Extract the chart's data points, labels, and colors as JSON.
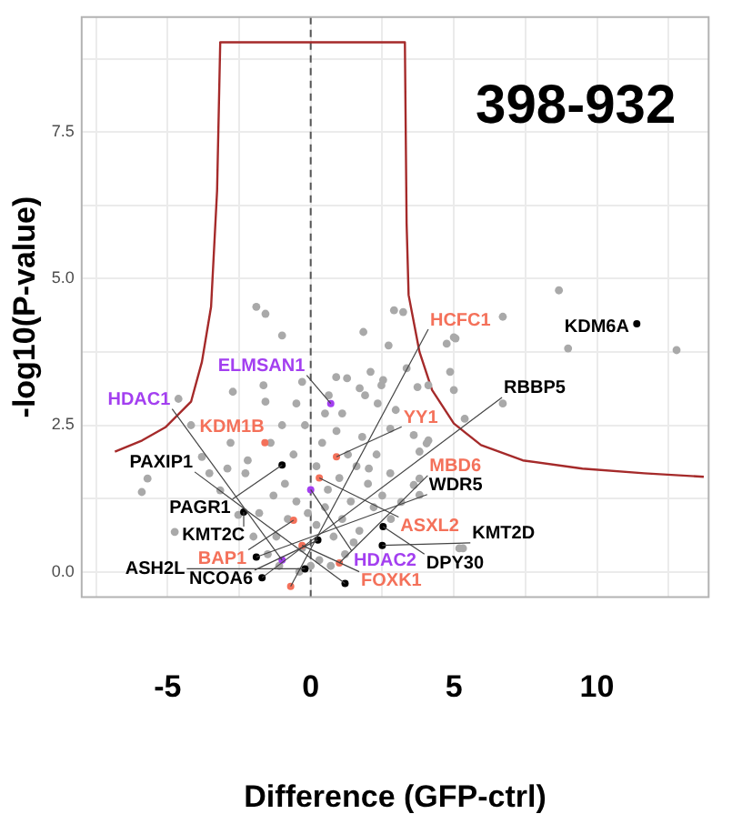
{
  "chart_data": {
    "type": "scatter",
    "xlabel": "Difference (GFP-ctrl)",
    "ylabel": "-log10(P-value)",
    "annotations": [
      "398-932"
    ],
    "xlim": [
      -8,
      13.9
    ],
    "ylim": [
      -0.43,
      9.46
    ],
    "xticks": [
      {
        "value": -7.5,
        "label": null
      },
      -5,
      {
        "value": -2.5,
        "label": null
      },
      0,
      {
        "value": 2.5,
        "label": null
      },
      5,
      {
        "value": 7.5,
        "label": null
      },
      10,
      {
        "value": 12.5,
        "label": null
      }
    ],
    "yticks": [
      {
        "value": 0,
        "label": "0.0"
      },
      {
        "value": 1.25,
        "label": null
      },
      {
        "value": 2.5,
        "label": "2.5"
      },
      {
        "value": 3.75,
        "label": null
      },
      {
        "value": 5,
        "label": "5.0"
      },
      {
        "value": 6.25,
        "label": null
      },
      {
        "value": 7.5,
        "label": "7.5"
      },
      {
        "value": 8.75,
        "label": null
      }
    ],
    "grid": true,
    "legend": false,
    "marker": "circle",
    "ref_lines": [
      {
        "axis": "x",
        "value": 0,
        "color": "#555555",
        "line_style": "dashed"
      }
    ],
    "series": [
      {
        "color": "#a9a9a9",
        "x": [
          -1.9,
          -1.58,
          1.84,
          2.91,
          3.23,
          5.06,
          6.71,
          8.67,
          8.99,
          12.78,
          5.0,
          4.75,
          2.72,
          4.87,
          5.0,
          6.71,
          5.38,
          4.11,
          3.73,
          3.35,
          4.11,
          3.8,
          3.8,
          5.32,
          2.97,
          2.53,
          2.09,
          1.71,
          2.34,
          3.6,
          2.03,
          -4.62,
          -4.18,
          -2.72,
          -5.7,
          -5.9,
          -4.75,
          -3.8,
          -3.54,
          -2.91,
          -2.28,
          -3.16,
          -2.53,
          -1.65,
          -1.58,
          -0.5,
          -0.3,
          0.89,
          1.27,
          -1.0,
          0.63,
          1.9,
          2.47,
          2.78,
          4.05,
          2.78,
          3.6,
          3.8,
          3.16,
          5.19,
          -1.5,
          -1.2,
          -0.8,
          -0.5,
          -0.3,
          0.2,
          0.5,
          0.8,
          1.1,
          1.4,
          1.7,
          0.3,
          -0.1,
          0.6,
          1.0,
          1.3,
          1.6,
          2.0,
          2.2,
          -0.9,
          -1.3,
          -1.8,
          -2.0,
          -0.6,
          0.4,
          0.9,
          1.8,
          2.3,
          -1.4,
          -2.2,
          0.0,
          0.7,
          1.2,
          -0.4,
          1.5,
          2.5,
          2.8,
          -2.8,
          -1.1,
          0.2,
          -0.2,
          0.5,
          1.1,
          -1.0
        ],
        "values": [
          4.52,
          4.4,
          4.09,
          4.46,
          4.43,
          3.98,
          4.35,
          4.8,
          3.81,
          3.78,
          4.0,
          3.89,
          3.86,
          3.41,
          3.1,
          2.87,
          2.61,
          3.18,
          3.15,
          3.47,
          2.24,
          2.05,
          1.59,
          0.4,
          2.76,
          3.27,
          3.41,
          3.13,
          2.87,
          2.33,
          1.76,
          2.95,
          2.5,
          3.07,
          1.59,
          1.36,
          0.68,
          1.96,
          1.68,
          1.76,
          1.68,
          1.39,
          0.97,
          3.18,
          2.9,
          2.87,
          3.24,
          3.32,
          3.3,
          4.03,
          3.01,
          3.01,
          3.18,
          2.44,
          2.19,
          1.68,
          1.48,
          1.31,
          1.19,
          0.4,
          0.3,
          0.6,
          0.9,
          1.2,
          0.4,
          0.8,
          1.1,
          0.6,
          0.9,
          1.2,
          0.7,
          0.2,
          1.0,
          1.4,
          1.6,
          2.0,
          1.8,
          1.5,
          1.1,
          1.5,
          1.3,
          1.0,
          0.6,
          2.0,
          2.2,
          2.4,
          2.3,
          2.0,
          2.2,
          1.9,
          0.1,
          0.1,
          0.3,
          0.0,
          0.5,
          1.3,
          0.9,
          2.2,
          0.1,
          1.8,
          2.5,
          2.7,
          2.7,
          2.5
        ]
      },
      {
        "type": "line",
        "marker": "none",
        "color": "#a52a2a",
        "x": [
          -6.84,
          -5.89,
          -5.06,
          -4.18,
          -3.8,
          -3.48,
          -3.27,
          -3.16,
          3.29,
          3.35,
          3.42,
          3.8,
          4.24,
          5.0,
          5.95,
          7.41,
          9.49,
          11.65,
          13.73
        ],
        "values": [
          2.05,
          2.24,
          2.47,
          2.9,
          3.58,
          4.52,
          6.5,
          9.03,
          9.03,
          5.94,
          4.72,
          3.75,
          3.1,
          2.53,
          2.16,
          1.9,
          1.76,
          1.68,
          1.62
        ]
      },
      {
        "name": "KDM6A",
        "color": "#000000",
        "x": [
          11.39
        ],
        "values": [
          4.23
        ]
      },
      {
        "name": "ELMSAN1",
        "color": "#a33ff0",
        "x": [
          0.7
        ],
        "values": [
          2.87
        ]
      },
      {
        "name": "KDM1B",
        "color": "#f4715a",
        "x": [
          -1.6
        ],
        "values": [
          2.2
        ]
      },
      {
        "name": "YY1",
        "color": "#f4715a",
        "x": [
          0.9
        ],
        "values": [
          1.96
        ]
      },
      {
        "name": "PAGR1",
        "color": "#000000",
        "x": [
          -1.0
        ],
        "values": [
          1.82
        ]
      },
      {
        "name": "ASXL2",
        "color": "#f4715a",
        "x": [
          0.3
        ],
        "values": [
          1.6
        ]
      },
      {
        "name": "HDAC2",
        "color": "#a33ff0",
        "x": [
          0.0
        ],
        "values": [
          1.4
        ]
      },
      {
        "name": "KMT2C",
        "color": "#000000",
        "x": [
          -2.34
        ],
        "values": [
          1.02
        ]
      },
      {
        "name": "BAP1",
        "color": "#f4715a",
        "x": [
          -0.6
        ],
        "values": [
          0.88
        ]
      },
      {
        "name": "DPY30",
        "color": "#000000",
        "x": [
          2.53
        ],
        "values": [
          0.77
        ]
      },
      {
        "name": "NCOA6",
        "color": "#000000",
        "x": [
          0.25
        ],
        "values": [
          0.54
        ]
      },
      {
        "name": "KMT2D",
        "color": "#000000",
        "x": [
          2.5
        ],
        "values": [
          0.45
        ]
      },
      {
        "name": "FOXK1",
        "color": "#f4715a",
        "x": [
          -0.3
        ],
        "values": [
          0.45
        ]
      },
      {
        "name": "WDR5",
        "color": "#000000",
        "x": [
          -1.9
        ],
        "values": [
          0.25
        ]
      },
      {
        "name": "HDAC1",
        "color": "#a33ff0",
        "x": [
          -1.0
        ],
        "values": [
          0.2
        ]
      },
      {
        "name": "MBD6",
        "color": "#f4715a",
        "x": [
          1.0
        ],
        "values": [
          0.15
        ]
      },
      {
        "name": "ASH2L",
        "color": "#000000",
        "x": [
          -0.2
        ],
        "values": [
          0.05
        ]
      },
      {
        "name": "RBBP5",
        "color": "#000000",
        "x": [
          -1.7
        ],
        "values": [
          -0.1
        ]
      },
      {
        "name": "HCFC1",
        "color": "#f4715a",
        "x": [
          -0.7
        ],
        "values": [
          -0.25
        ]
      },
      {
        "name": "PAXIP1",
        "color": "#000000",
        "x": [
          1.2
        ],
        "values": [
          -0.2
        ]
      }
    ]
  }
}
